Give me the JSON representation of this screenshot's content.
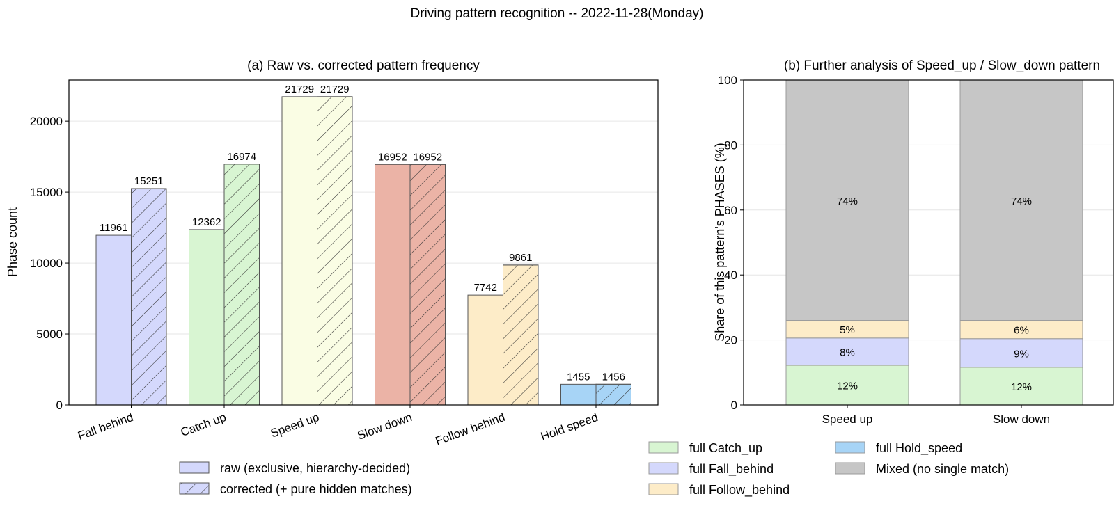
{
  "figure": {
    "title": "Driving pattern recognition -- 2022-11-28(Monday)"
  },
  "chart_data": [
    {
      "type": "bar",
      "title": "(a) Raw vs. corrected pattern frequency",
      "xlabel": "",
      "ylabel": "Phase count",
      "ylim": [
        0,
        22900
      ],
      "yticks": [
        0,
        5000,
        10000,
        15000,
        20000
      ],
      "categories": [
        "Fall behind",
        "Catch up",
        "Speed up",
        "Slow down",
        "Follow behind",
        "Hold speed"
      ],
      "category_colors": [
        "#d4d8fc",
        "#d8f5d2",
        "#fafde4",
        "#ebb3a6",
        "#fdecc8",
        "#a7d4f6"
      ],
      "series": [
        {
          "name": "raw (exclusive, hierarchy-decided)",
          "hatch": false,
          "values": [
            11961,
            12362,
            21729,
            16952,
            7742,
            1455
          ]
        },
        {
          "name": "corrected (+ pure hidden matches)",
          "hatch": true,
          "values": [
            15251,
            16974,
            21729,
            16952,
            9861,
            1456
          ]
        }
      ],
      "grid": true,
      "legend_placement": "bottom"
    },
    {
      "type": "bar",
      "stacked": true,
      "title": "(b) Further analysis of Speed_up / Slow_down pattern",
      "xlabel": "",
      "ylabel": "Share of this pattern's PHASES (%)",
      "ylim": [
        0,
        100
      ],
      "yticks": [
        0,
        20,
        40,
        60,
        80,
        100
      ],
      "categories": [
        "Speed up",
        "Slow down"
      ],
      "series": [
        {
          "name": "full Catch_up",
          "color": "#d8f5d2",
          "values": [
            12.2,
            11.6
          ],
          "labels": [
            "12%",
            "12%"
          ]
        },
        {
          "name": "full Fall_behind",
          "color": "#d4d8fc",
          "values": [
            8.4,
            8.8
          ],
          "labels": [
            "8%",
            "9%"
          ]
        },
        {
          "name": "full Follow_behind",
          "color": "#fdecc8",
          "values": [
            5.4,
            5.6
          ],
          "labels": [
            "5%",
            "6%"
          ]
        },
        {
          "name": "full Hold_speed",
          "color": "#a7d4f6",
          "values": [
            0.0,
            0.0
          ],
          "labels": [
            "",
            ""
          ]
        },
        {
          "name": "Mixed (no single match)",
          "color": "#c6c6c6",
          "values": [
            74.0,
            74.0
          ],
          "labels": [
            "74%",
            "74%"
          ]
        }
      ],
      "grid": true,
      "legend_placement": "bottom"
    }
  ]
}
